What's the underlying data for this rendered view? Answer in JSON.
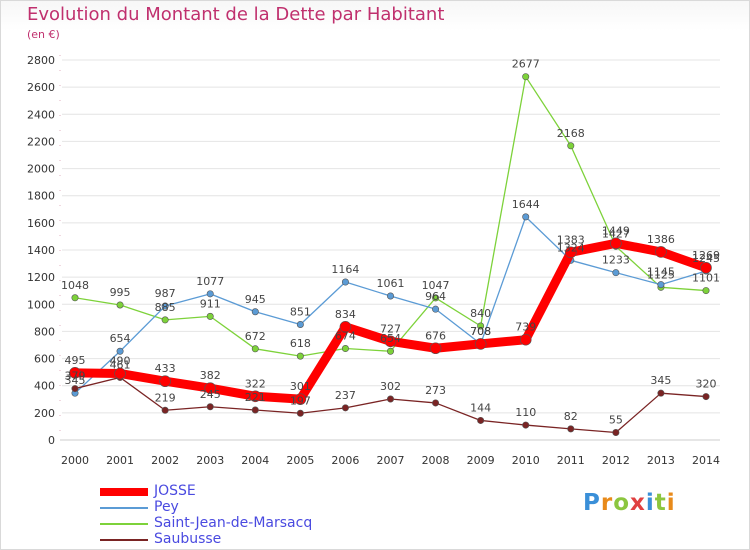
{
  "header": {
    "title": "Evolution du Montant de la Dette par Habitant",
    "subtitle": "(en €)"
  },
  "logo": {
    "text": "Proxiti",
    "colors": [
      "#3a8fd8",
      "#e88a1a",
      "#8cc63f",
      "#e04040",
      "#3a8fd8",
      "#8cc63f",
      "#e88a1a"
    ]
  },
  "chart_data": {
    "type": "line",
    "title": "Evolution du Montant de la Dette par Habitant",
    "subtitle": "(en €)",
    "xlabel": "",
    "ylabel": "",
    "x": [
      "2000",
      "2001",
      "2002",
      "2003",
      "2004",
      "2005",
      "2006",
      "2007",
      "2008",
      "2009",
      "2010",
      "2011",
      "2012",
      "2013",
      "2014"
    ],
    "ylim": [
      0,
      2800
    ],
    "yticks": [
      "0",
      "200",
      "400",
      "600",
      "800",
      "1000",
      "1200",
      "1400",
      "1600",
      "1800",
      "2000",
      "2200",
      "2400",
      "2600",
      "2800"
    ],
    "grid": "horizontal",
    "legend_position": "bottom-left",
    "series": [
      {
        "name": "JOSSE",
        "color": "#ff0000",
        "values": [
          495,
          490,
          433,
          382,
          322,
          301,
          834,
          727,
          676,
          708,
          739,
          1383,
          1449,
          1386,
          1269
        ],
        "labels": [
          "495",
          "490",
          "433",
          "382",
          "322",
          "301",
          "834",
          "727",
          "676",
          "708",
          "739",
          "1383",
          "1449",
          "1386",
          "1269"
        ]
      },
      {
        "name": "Pey",
        "color": "#5b9bd5",
        "values": [
          345,
          654,
          987,
          1077,
          945,
          851,
          1164,
          1061,
          964,
          708,
          1644,
          1324,
          1233,
          1145,
          1245
        ],
        "labels": [
          "345",
          "654",
          "987",
          "1077",
          "945",
          "851",
          "1164",
          "1061",
          "964",
          "708",
          "1644",
          "1324",
          "1233",
          "1145",
          "1245"
        ]
      },
      {
        "name": "Saint-Jean-de-Marsacq",
        "color": "#7dd23a",
        "values": [
          1048,
          995,
          885,
          911,
          672,
          618,
          674,
          654,
          1047,
          840,
          2677,
          2168,
          1427,
          1125,
          1101
        ],
        "labels": [
          "1048",
          "995",
          "885",
          "911",
          "672",
          "618",
          "674",
          "654",
          "1047",
          "840",
          "2677",
          "2168",
          "1427",
          "1125",
          "1101"
        ]
      },
      {
        "name": "Saubusse",
        "color": "#7a2424",
        "values": [
          379,
          461,
          219,
          245,
          221,
          197,
          237,
          302,
          273,
          144,
          110,
          82,
          55,
          345,
          320
        ],
        "labels": [
          "379",
          "461",
          "219",
          "245",
          "221",
          "197",
          "237",
          "302",
          "273",
          "144",
          "110",
          "82",
          "55",
          "345",
          "320"
        ]
      }
    ]
  }
}
